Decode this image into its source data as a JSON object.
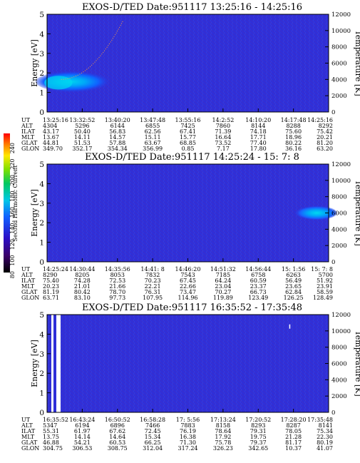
{
  "colorbar": {
    "label": "Second Harmonic Current",
    "ticks": [
      "240",
      "220",
      "200",
      "180",
      "160",
      "140",
      "120",
      "100",
      "80"
    ]
  },
  "row_labels": [
    "UT",
    "ALT",
    "ILAT",
    "MLT",
    "GLAT",
    "GLON"
  ],
  "chart_data": [
    {
      "type": "heatmap",
      "title": "EXOS-D/TED   Date:951117   13:25:16 - 14:25:16",
      "ylabel": "Energy [eV]",
      "y2label": "Temperature [K]",
      "ylim": [
        0,
        5
      ],
      "y2lim": [
        0,
        12000
      ],
      "yticks": [
        "0",
        "1",
        "2",
        "3",
        "4",
        "5"
      ],
      "y2ticks": [
        "0",
        "2000",
        "4000",
        "6000",
        "8000",
        "10000",
        "12000"
      ],
      "table": {
        "UT": [
          "13:25:16",
          "13:32:52",
          "13:40:20",
          "13:47:48",
          "13:55:16",
          "14:2:52",
          "14:10:20",
          "14:17:48",
          "14:25:16"
        ],
        "ALT": [
          "4304",
          "5296",
          "6144",
          "6855",
          "7425",
          "7860",
          "8144",
          "8288",
          "8292"
        ],
        "ILAT": [
          "43.17",
          "50.40",
          "56.83",
          "62.56",
          "67.41",
          "71.39",
          "74.18",
          "75.60",
          "75.42"
        ],
        "MLT": [
          "13.67",
          "14.11",
          "14.57",
          "15.11",
          "15.77",
          "16.64",
          "17.71",
          "18.96",
          "20.21"
        ],
        "GLAT": [
          "44.81",
          "51.53",
          "57.88",
          "63.67",
          "68.85",
          "73.52",
          "77.40",
          "80.22",
          "81.20"
        ],
        "GLON": [
          "349.70",
          "352.17",
          "354.34",
          "356.99",
          "0.85",
          "7.17",
          "17.80",
          "36.16",
          "63.20"
        ]
      }
    },
    {
      "type": "heatmap",
      "title": "EXOS-D/TED   Date:951117   14:25:24 - 15: 7: 8",
      "ylabel": "Energy [eV]",
      "y2label": "Temperature [K]",
      "ylim": [
        0,
        5
      ],
      "y2lim": [
        0,
        12000
      ],
      "yticks": [
        "0",
        "1",
        "2",
        "3",
        "4",
        "5"
      ],
      "y2ticks": [
        "0",
        "2000",
        "4000",
        "6000",
        "8000",
        "10000",
        "12000"
      ],
      "table": {
        "UT": [
          "14:25:24",
          "14:30:44",
          "14:35:56",
          "14:41: 8",
          "14:46:20",
          "14:51:32",
          "14:56:44",
          "15: 1:56",
          "15: 7: 8"
        ],
        "ALT": [
          "8290",
          "8205",
          "8053",
          "7832",
          "7543",
          "7185",
          "6758",
          "6263",
          "5700"
        ],
        "ILAT": [
          "75.40",
          "74.28",
          "72.53",
          "70.23",
          "67.45",
          "64.24",
          "60.59",
          "56.49",
          "51.92"
        ],
        "MLT": [
          "20.23",
          "21.01",
          "21.66",
          "22.21",
          "22.66",
          "23.04",
          "23.37",
          "23.65",
          "23.91"
        ],
        "GLAT": [
          "81.19",
          "80.42",
          "78.70",
          "76.31",
          "73.47",
          "70.27",
          "66.73",
          "62.84",
          "58.59"
        ],
        "GLON": [
          "63.71",
          "83.10",
          "97.73",
          "107.95",
          "114.96",
          "119.89",
          "123.49",
          "126.25",
          "128.49"
        ]
      }
    },
    {
      "type": "heatmap",
      "title": "EXOS-D/TED   Date:951117   16:35:52 - 17:35:48",
      "ylabel": "Energy [eV]",
      "y2label": "Temperature [K]",
      "ylim": [
        0,
        5
      ],
      "y2lim": [
        0,
        12000
      ],
      "yticks": [
        "0",
        "1",
        "2",
        "3",
        "4",
        "5"
      ],
      "y2ticks": [
        "0",
        "2000",
        "4000",
        "6000",
        "8000",
        "10000",
        "12000"
      ],
      "table": {
        "UT": [
          "16:35:52",
          "16:43:24",
          "16:50:52",
          "16:58:28",
          "17: 5:56",
          "17:13:24",
          "17:20:52",
          "17:28:20",
          "17:35:48"
        ],
        "ALT": [
          "5347",
          "6194",
          "6896",
          "7466",
          "7883",
          "8158",
          "8293",
          "8287",
          "8141"
        ],
        "ILAT": [
          "55.31",
          "61.97",
          "67.62",
          "72.45",
          "76.19",
          "78.64",
          "79.31",
          "78.05",
          "75.34"
        ],
        "MLT": [
          "13.75",
          "14.14",
          "14.64",
          "15.34",
          "16.38",
          "17.92",
          "19.75",
          "21.28",
          "22.30"
        ],
        "GLAT": [
          "46.88",
          "54.21",
          "60.53",
          "66.25",
          "71.30",
          "75.78",
          "79.37",
          "81.17",
          "80.19"
        ],
        "GLON": [
          "304.75",
          "306.53",
          "308.75",
          "312.04",
          "317.24",
          "326.23",
          "342.65",
          "10.37",
          "41.07"
        ]
      }
    }
  ]
}
